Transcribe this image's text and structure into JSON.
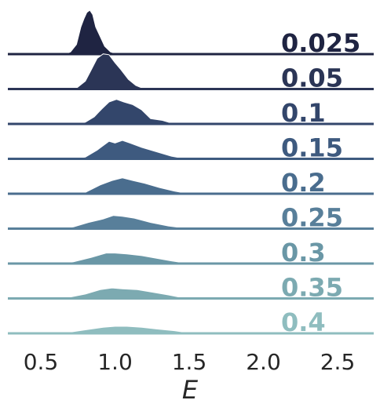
{
  "chart_data": {
    "type": "ridgeline",
    "xlabel": "E",
    "xlim": [
      0.2,
      2.75
    ],
    "xticks": [
      "0.5",
      "1.0",
      "1.5",
      "2.0",
      "2.5"
    ],
    "xtick_values": [
      0.5,
      1.0,
      1.5,
      2.0,
      2.5
    ],
    "grid": false,
    "series": [
      {
        "name": "0.025",
        "color": "#1f2442",
        "center": 0.82,
        "spread": 0.065,
        "points": [
          [
            0.66,
            0.0
          ],
          [
            0.7,
            0.05
          ],
          [
            0.74,
            0.22
          ],
          [
            0.77,
            0.62
          ],
          [
            0.79,
            0.8
          ],
          [
            0.81,
            0.95
          ],
          [
            0.83,
            1.0
          ],
          [
            0.85,
            0.9
          ],
          [
            0.87,
            0.62
          ],
          [
            0.9,
            0.4
          ],
          [
            0.93,
            0.18
          ],
          [
            0.97,
            0.05
          ],
          [
            1.02,
            0.0
          ]
        ]
      },
      {
        "name": "0.05",
        "color": "#2b3556",
        "center": 0.92,
        "spread": 0.1,
        "points": [
          [
            0.68,
            0.0
          ],
          [
            0.74,
            0.02
          ],
          [
            0.8,
            0.18
          ],
          [
            0.84,
            0.44
          ],
          [
            0.88,
            0.7
          ],
          [
            0.92,
            0.8
          ],
          [
            0.96,
            0.78
          ],
          [
            1.0,
            0.6
          ],
          [
            1.04,
            0.44
          ],
          [
            1.09,
            0.22
          ],
          [
            1.14,
            0.08
          ],
          [
            1.2,
            0.0
          ]
        ]
      },
      {
        "name": "0.1",
        "color": "#33466b",
        "center": 1.02,
        "spread": 0.14,
        "points": [
          [
            0.72,
            0.0
          ],
          [
            0.8,
            0.04
          ],
          [
            0.86,
            0.16
          ],
          [
            0.91,
            0.34
          ],
          [
            0.96,
            0.5
          ],
          [
            1.01,
            0.56
          ],
          [
            1.06,
            0.5
          ],
          [
            1.12,
            0.44
          ],
          [
            1.18,
            0.32
          ],
          [
            1.24,
            0.12
          ],
          [
            1.32,
            0.08
          ],
          [
            1.4,
            0.0
          ]
        ]
      },
      {
        "name": "0.15",
        "color": "#3e5a7f",
        "center": 1.03,
        "spread": 0.17,
        "points": [
          [
            0.7,
            0.0
          ],
          [
            0.8,
            0.04
          ],
          [
            0.88,
            0.2
          ],
          [
            0.96,
            0.4
          ],
          [
            1.0,
            0.36
          ],
          [
            1.05,
            0.42
          ],
          [
            1.1,
            0.36
          ],
          [
            1.18,
            0.26
          ],
          [
            1.28,
            0.16
          ],
          [
            1.38,
            0.06
          ],
          [
            1.48,
            0.0
          ]
        ]
      },
      {
        "name": "0.2",
        "color": "#4a6d8e",
        "center": 1.05,
        "spread": 0.19,
        "points": [
          [
            0.7,
            0.0
          ],
          [
            0.8,
            0.03
          ],
          [
            0.9,
            0.2
          ],
          [
            0.98,
            0.3
          ],
          [
            1.05,
            0.36
          ],
          [
            1.12,
            0.3
          ],
          [
            1.2,
            0.24
          ],
          [
            1.3,
            0.14
          ],
          [
            1.4,
            0.06
          ],
          [
            1.5,
            0.0
          ]
        ]
      },
      {
        "name": "0.25",
        "color": "#587f9a",
        "center": 1.02,
        "spread": 0.21,
        "points": [
          [
            0.62,
            0.0
          ],
          [
            0.72,
            0.04
          ],
          [
            0.82,
            0.14
          ],
          [
            0.92,
            0.22
          ],
          [
            0.99,
            0.3
          ],
          [
            1.05,
            0.28
          ],
          [
            1.13,
            0.24
          ],
          [
            1.24,
            0.14
          ],
          [
            1.36,
            0.06
          ],
          [
            1.5,
            0.0
          ]
        ]
      },
      {
        "name": "0.3",
        "color": "#6a97a6",
        "center": 1.03,
        "spread": 0.23,
        "points": [
          [
            0.62,
            0.0
          ],
          [
            0.72,
            0.04
          ],
          [
            0.84,
            0.14
          ],
          [
            0.94,
            0.24
          ],
          [
            1.0,
            0.24
          ],
          [
            1.08,
            0.22
          ],
          [
            1.18,
            0.18
          ],
          [
            1.28,
            0.12
          ],
          [
            1.38,
            0.06
          ],
          [
            1.5,
            0.0
          ]
        ]
      },
      {
        "name": "0.35",
        "color": "#7caab1",
        "center": 1.0,
        "spread": 0.24,
        "points": [
          [
            0.58,
            0.0
          ],
          [
            0.68,
            0.02
          ],
          [
            0.8,
            0.1
          ],
          [
            0.9,
            0.2
          ],
          [
            0.98,
            0.24
          ],
          [
            1.05,
            0.22
          ],
          [
            1.15,
            0.2
          ],
          [
            1.26,
            0.14
          ],
          [
            1.36,
            0.08
          ],
          [
            1.48,
            0.0
          ]
        ]
      },
      {
        "name": "0.4",
        "color": "#8fbdbf",
        "center": 1.02,
        "spread": 0.25,
        "points": [
          [
            0.58,
            0.0
          ],
          [
            0.68,
            0.02
          ],
          [
            0.8,
            0.08
          ],
          [
            0.92,
            0.14
          ],
          [
            1.0,
            0.16
          ],
          [
            1.08,
            0.16
          ],
          [
            1.18,
            0.14
          ],
          [
            1.28,
            0.1
          ],
          [
            1.4,
            0.06
          ],
          [
            1.52,
            0.0
          ]
        ]
      }
    ]
  }
}
